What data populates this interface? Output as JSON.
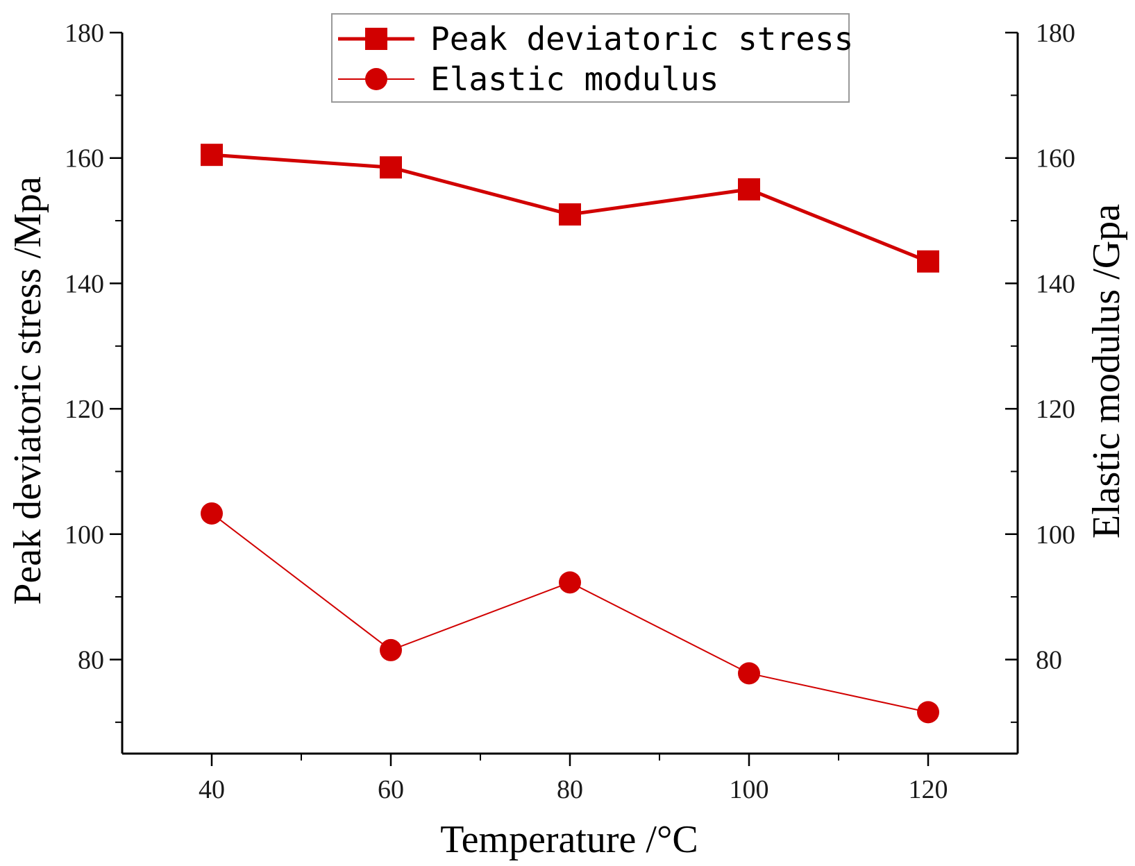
{
  "chart_data": {
    "type": "line",
    "x": [
      40,
      60,
      80,
      100,
      120
    ],
    "xlabel": "Temperature /°C",
    "ylabel_left": "Peak deviatoric stress /Mpa",
    "ylabel_right": "Elastic modulus /Gpa",
    "xlim": [
      30,
      130
    ],
    "ylim_left": [
      65,
      180
    ],
    "ylim_right": [
      65,
      180
    ],
    "x_ticks": [
      "40",
      "60",
      "80",
      "100",
      "120"
    ],
    "y_ticks_left": [
      "80",
      "100",
      "120",
      "140",
      "160",
      "180"
    ],
    "y_ticks_right": [
      "80",
      "100",
      "120",
      "140",
      "160",
      "180"
    ],
    "legend_position": "top-center",
    "series": [
      {
        "name": "Peak deviatoric stress",
        "marker": "square",
        "axis": "left",
        "values": [
          160.5,
          158.5,
          151,
          155,
          143.5
        ]
      },
      {
        "name": "Elastic modulus",
        "marker": "circle",
        "axis": "right",
        "values": [
          103.3,
          81.5,
          92.3,
          77.8,
          71.6
        ]
      }
    ],
    "color": "#d10000"
  }
}
